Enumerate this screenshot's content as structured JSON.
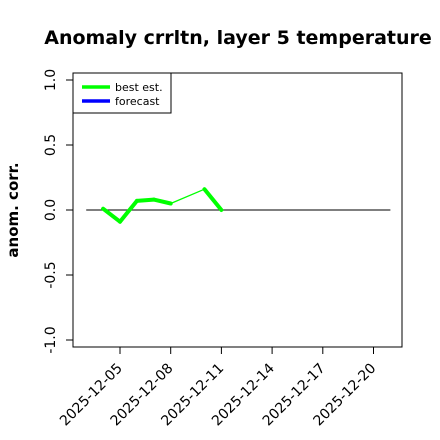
{
  "chart_data": {
    "type": "line",
    "title": "Anomaly crrltn, layer 5 temperature",
    "xlabel": "",
    "ylabel": "anom. corr.",
    "ylim": [
      -1.0,
      1.0
    ],
    "xlim": [
      "2025-12-02",
      "2025-12-21"
    ],
    "y_ticks": [
      "-1.0",
      "-0.5",
      "0.0",
      "0.5",
      "1.0"
    ],
    "x_ticks": [
      "2025-12-05",
      "2025-12-08",
      "2025-12-11",
      "2025-12-14",
      "2025-12-17",
      "2025-12-20"
    ],
    "highlighted_x_tick": "2025-12-11",
    "reference_line": 0.0,
    "grid": false,
    "legend_position": "top-left",
    "series": [
      {
        "name": "best est.",
        "color": "#00ff00",
        "x": [
          "2025-12-04",
          "2025-12-05",
          "2025-12-06",
          "2025-12-07",
          "2025-12-08",
          "2025-12-10",
          "2025-12-11"
        ],
        "values": [
          0.01,
          -0.09,
          0.07,
          0.08,
          0.05,
          0.16,
          0.0
        ],
        "segment_widths": [
          "thick",
          "thick",
          "thick",
          "thick",
          "thin",
          "thick"
        ]
      },
      {
        "name": "forecast",
        "color": "#0000ff",
        "x": [],
        "values": []
      }
    ],
    "colors": {
      "axis": "#000000",
      "reference_line": "#333333",
      "highlighted_tick": "#228b22"
    }
  }
}
